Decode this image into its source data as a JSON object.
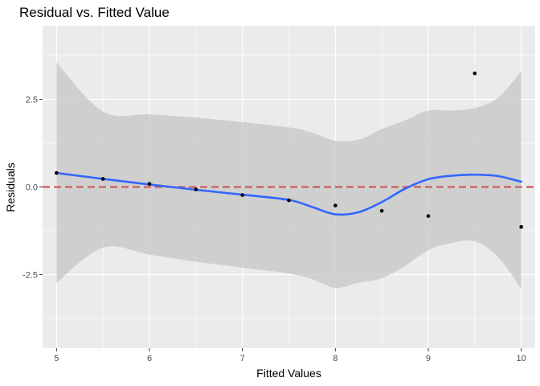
{
  "chart_data": {
    "type": "scatter",
    "title": "Residual vs. Fitted Value",
    "xlabel": "Fitted Values",
    "ylabel": "Residuals",
    "xlim": [
      4.85,
      10.15
    ],
    "ylim": [
      -4.6,
      4.6
    ],
    "x_ticks": [
      5,
      6,
      7,
      8,
      9,
      10
    ],
    "x_tick_labels": [
      "5",
      "6",
      "7",
      "8",
      "9",
      "10"
    ],
    "y_ticks": [
      -2.5,
      0,
      2.5
    ],
    "y_tick_labels": [
      "-2.5",
      "0.0",
      "2.5"
    ],
    "grid": true,
    "points": {
      "x": [
        5,
        5.5,
        6,
        6.5,
        7,
        7.5,
        8,
        8.5,
        9,
        9.5,
        10
      ],
      "y": [
        0.4,
        0.23,
        0.09,
        -0.07,
        -0.23,
        -0.38,
        -0.53,
        -0.68,
        -0.83,
        3.24,
        -1.14
      ]
    },
    "smooth": {
      "x": [
        5,
        5.5,
        6,
        6.5,
        7,
        7.5,
        7.75,
        8,
        8.25,
        8.5,
        8.75,
        9,
        9.25,
        9.5,
        9.75,
        10
      ],
      "y": [
        0.4,
        0.23,
        0.07,
        -0.08,
        -0.22,
        -0.37,
        -0.57,
        -0.78,
        -0.72,
        -0.43,
        -0.05,
        0.22,
        0.32,
        0.35,
        0.31,
        0.15
      ],
      "lower": [
        -2.73,
        -1.73,
        -1.93,
        -2.13,
        -2.3,
        -2.47,
        -2.63,
        -2.88,
        -2.73,
        -2.6,
        -2.25,
        -1.8,
        -1.6,
        -1.55,
        -2.0,
        -2.9
      ],
      "upper": [
        3.55,
        2.15,
        2.07,
        1.98,
        1.85,
        1.7,
        1.55,
        1.32,
        1.35,
        1.65,
        1.9,
        2.18,
        2.18,
        2.25,
        2.55,
        3.3
      ]
    },
    "reference_line": {
      "y": 0,
      "style": "dashed"
    },
    "colors": {
      "panel": "#ebebeb",
      "grid": "#ffffff",
      "points": "#000000",
      "smooth_line": "#3366ff",
      "ribbon": "#c8c8c8",
      "reference_line": "#cd5c5c"
    }
  }
}
